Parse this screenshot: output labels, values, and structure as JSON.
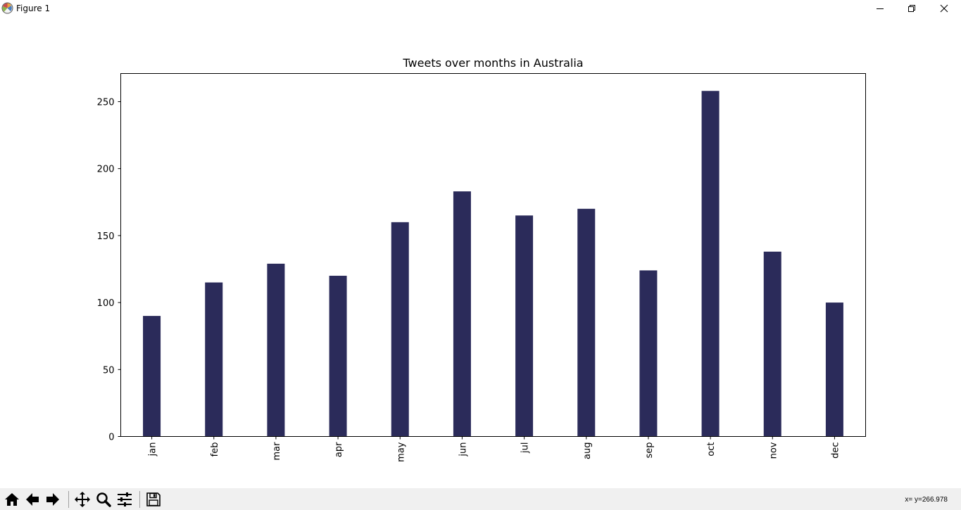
{
  "window": {
    "title": "Figure 1",
    "icons": {
      "app": "matplotlib-logo-icon",
      "minimize": "minimize-icon",
      "maximize": "restore-icon",
      "close": "close-icon"
    }
  },
  "toolbar": {
    "buttons": [
      {
        "name": "home",
        "icon": "home-icon"
      },
      {
        "name": "back",
        "icon": "arrow-left-icon"
      },
      {
        "name": "forward",
        "icon": "arrow-right-icon"
      },
      {
        "name": "pan",
        "icon": "move-arrows-icon"
      },
      {
        "name": "zoom",
        "icon": "magnifier-icon"
      },
      {
        "name": "configure-subplots",
        "icon": "sliders-icon"
      },
      {
        "name": "save",
        "icon": "floppy-disk-icon"
      }
    ],
    "coordinates": "x= y=266.978"
  },
  "chart_data": {
    "type": "bar",
    "title": "Tweets over months in Australia",
    "xlabel": "",
    "ylabel": "",
    "categories": [
      "jan",
      "feb",
      "mar",
      "apr",
      "may",
      "jun",
      "jul",
      "aug",
      "sep",
      "oct",
      "nov",
      "dec"
    ],
    "values": [
      90,
      115,
      129,
      120,
      160,
      183,
      165,
      170,
      124,
      258,
      138,
      100
    ],
    "ylim": [
      0,
      271
    ],
    "yticks": [
      0,
      50,
      100,
      150,
      200,
      250
    ],
    "bar_color": "#2b2b5a",
    "grid": false,
    "x_tick_rotation": "vertical",
    "legend": "none"
  }
}
